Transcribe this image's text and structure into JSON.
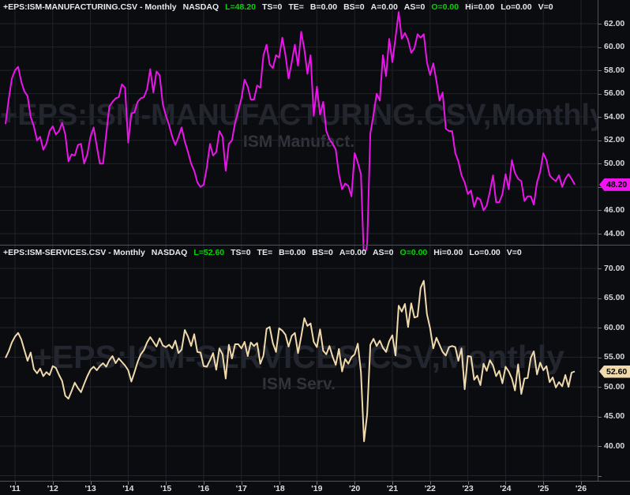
{
  "window": {
    "background": "#0b0c0f",
    "grid_color": "#20232b",
    "separator_color": "#4d515b",
    "header_text_color": "#e8e9ec",
    "header_green_color": "#00d800",
    "axis_text_color": "#d6d8de"
  },
  "panes": [
    {
      "header": {
        "symbol": "+EPS:ISM-MANUFACTURING.CSV - Monthly",
        "exchange": "NASDAQ",
        "last_label": "L=48.20",
        "tokens_mid": [
          "TS=0",
          "TE=",
          "B=0.00",
          "BS=0",
          "A=0.00",
          "AS=0"
        ],
        "open_label": "O=0.00",
        "tokens_end": [
          "Hi=0.00",
          "Lo=0.00",
          "V=0"
        ]
      },
      "watermark": {
        "title": "+EPS:ISM-MANUFACTURING.CSV,Monthly",
        "subtitle": "ISM Manufact."
      },
      "price_tag": {
        "text": "48.20",
        "color": "#f014f0"
      },
      "axis_labels": [
        "62.00",
        "60.00",
        "58.00",
        "56.00",
        "54.00",
        "52.00",
        "50.00",
        "46.00",
        "44.00"
      ]
    },
    {
      "header": {
        "symbol": "+EPS:ISM-SERVICES.CSV - Monthly",
        "exchange": "NASDAQ",
        "last_label": "L=52.60",
        "tokens_mid": [
          "TS=0",
          "TE=",
          "B=0.00",
          "BS=0",
          "A=0.00",
          "AS=0"
        ],
        "open_label": "O=0.00",
        "tokens_end": [
          "Hi=0.00",
          "Lo=0.00",
          "V=0"
        ]
      },
      "watermark": {
        "title": "+EPS:ISM-SERVICES.CSV,Monthly",
        "subtitle": "ISM Serv."
      },
      "price_tag": {
        "text": "52.60",
        "color": "#f0d9ab"
      },
      "axis_labels": [
        "70.00",
        "65.00",
        "60.00",
        "55.00",
        "50.00",
        "45.00",
        "40.00"
      ]
    }
  ],
  "time_axis": {
    "labels": [
      "'11",
      "'12",
      "'13",
      "'14",
      "'15",
      "'16",
      "'17",
      "'18",
      "'19",
      "'20",
      "'21",
      "'22",
      "'23",
      "'24",
      "'25",
      "'26"
    ]
  },
  "chart_data": [
    {
      "type": "line",
      "name": "ISM Manufacturing PMI",
      "series_label": "+EPS:ISM-MANUFACTURING.CSV",
      "period": "Monthly",
      "x_start": "2010-10",
      "x_end": "2025-11",
      "frequency": "monthly",
      "color": "#ea15ea",
      "last_value": 48.2,
      "y_ticks": [
        62,
        60,
        58,
        56,
        54,
        52,
        50,
        48,
        46,
        44
      ],
      "y_visible_range": [
        43.0,
        62.9
      ],
      "values": [
        53.4,
        55.5,
        57.3,
        58.0,
        58.3,
        57.0,
        56.2,
        55.8,
        54.0,
        53.2,
        52.0,
        52.3,
        51.2,
        51.7,
        52.8,
        53.2,
        52.5,
        52.8,
        53.5,
        52.5,
        50.2,
        50.8,
        50.7,
        51.6,
        51.7,
        50.0,
        50.8,
        52.3,
        53.1,
        51.5,
        50.0,
        50.0,
        52.5,
        54.9,
        55.3,
        55.6,
        55.7,
        56.8,
        56.5,
        51.8,
        54.3,
        54.4,
        55.3,
        55.6,
        55.7,
        56.4,
        58.1,
        56.1,
        57.9,
        57.6,
        55.1,
        54.1,
        53.3,
        52.3,
        51.6,
        52.3,
        53.1,
        51.9,
        51.0,
        50.0,
        49.4,
        48.4,
        48.0,
        48.2,
        49.7,
        51.7,
        50.7,
        51.0,
        52.8,
        52.3,
        49.4,
        51.7,
        52.0,
        53.5,
        54.5,
        55.6,
        57.2,
        56.6,
        55.5,
        55.5,
        56.7,
        56.5,
        59.3,
        60.2,
        58.5,
        58.2,
        59.3,
        59.1,
        60.8,
        59.3,
        57.3,
        58.7,
        60.2,
        58.4,
        61.3,
        59.8,
        57.7,
        59.3,
        54.1,
        56.6,
        54.2,
        55.3,
        52.8,
        52.1,
        51.7,
        51.2,
        49.1,
        47.8,
        48.3,
        48.1,
        47.2,
        50.9,
        50.1,
        49.1,
        41.5,
        43.1,
        52.6,
        54.2,
        56.0,
        55.4,
        59.3,
        57.5,
        60.7,
        58.7,
        60.8,
        63.0,
        60.7,
        61.2,
        60.6,
        59.5,
        59.9,
        61.1,
        60.8,
        61.1,
        58.7,
        57.6,
        58.6,
        57.1,
        55.4,
        56.1,
        53.0,
        52.8,
        52.8,
        50.9,
        50.2,
        49.0,
        48.4,
        47.4,
        47.7,
        46.3,
        47.1,
        46.9,
        46.0,
        46.4,
        47.6,
        49.0,
        46.7,
        46.7,
        47.4,
        49.1,
        47.8,
        50.3,
        49.2,
        48.7,
        48.5,
        46.8,
        47.2,
        47.2,
        46.5,
        48.4,
        49.3,
        50.9,
        50.3,
        49.0,
        48.7,
        48.5,
        49.0,
        48.0,
        48.7,
        49.1,
        48.7,
        48.2
      ]
    },
    {
      "type": "line",
      "name": "ISM Services PMI",
      "series_label": "+EPS:ISM-SERVICES.CSV",
      "period": "Monthly",
      "x_start": "2010-10",
      "x_end": "2025-11",
      "frequency": "monthly",
      "color": "#f0d9ab",
      "last_value": 52.6,
      "y_ticks": [
        70,
        65,
        60,
        55,
        50,
        45,
        40
      ],
      "y_visible_range": [
        35.0,
        71.0
      ],
      "values": [
        54.9,
        56.0,
        57.5,
        58.5,
        59.1,
        58.0,
        56.2,
        54.4,
        55.8,
        53.0,
        52.3,
        53.1,
        51.8,
        52.5,
        52.0,
        53.5,
        53.2,
        52.0,
        51.0,
        48.5,
        48.0,
        49.3,
        50.7,
        49.8,
        49.1,
        50.5,
        51.8,
        52.9,
        53.4,
        52.8,
        53.5,
        54.0,
        53.4,
        54.5,
        55.2,
        54.0,
        54.8,
        54.2,
        53.6,
        52.8,
        50.9,
        52.5,
        54.2,
        55.5,
        56.2,
        57.5,
        58.4,
        57.6,
        56.8,
        58.2,
        57.0,
        56.7,
        57.1,
        56.5,
        57.8,
        55.7,
        56.3,
        59.6,
        58.5,
        56.9,
        58.9,
        55.9,
        55.8,
        53.5,
        53.4,
        54.5,
        55.7,
        52.9,
        56.5,
        55.5,
        51.4,
        57.1,
        54.8,
        57.2,
        57.2,
        56.5,
        57.6,
        55.2,
        57.5,
        56.9,
        57.4,
        53.9,
        55.3,
        59.8,
        60.1,
        57.4,
        55.9,
        59.9,
        59.5,
        58.8,
        56.8,
        58.6,
        59.1,
        55.7,
        58.5,
        61.6,
        60.3,
        60.7,
        57.6,
        56.7,
        59.7,
        56.1,
        55.5,
        56.9,
        55.1,
        53.7,
        56.4,
        52.6,
        54.7,
        53.9,
        55.0,
        55.5,
        57.3,
        52.5,
        40.8,
        45.4,
        57.1,
        58.1,
        56.9,
        57.8,
        56.6,
        55.9,
        57.7,
        58.7,
        55.3,
        63.7,
        62.7,
        64.0,
        60.1,
        64.1,
        61.7,
        61.9,
        66.7,
        67.9,
        62.3,
        59.9,
        56.5,
        58.3,
        57.1,
        55.9,
        55.3,
        56.7,
        56.9,
        56.7,
        54.4,
        56.5,
        49.6,
        55.2,
        55.1,
        51.2,
        51.9,
        50.3,
        53.9,
        52.7,
        54.5,
        53.6,
        51.8,
        52.7,
        50.6,
        53.4,
        52.6,
        51.4,
        49.4,
        53.8,
        48.8,
        51.4,
        51.5,
        54.9,
        56.0,
        52.1,
        54.1,
        52.8,
        53.5,
        50.8,
        51.6,
        49.9,
        50.8,
        50.1,
        52.0,
        50.0,
        52.4,
        52.6
      ]
    }
  ]
}
